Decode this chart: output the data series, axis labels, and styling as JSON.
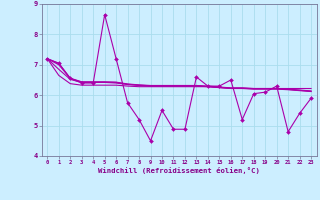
{
  "xlabel": "Windchill (Refroidissement éolien,°C)",
  "background_color": "#cceeff",
  "grid_color": "#aaddee",
  "line_color": "#aa00aa",
  "label_color": "#880088",
  "bottom_bar_color": "#9966aa",
  "xlim": [
    -0.5,
    23.5
  ],
  "ylim": [
    4,
    9
  ],
  "yticks": [
    4,
    5,
    6,
    7,
    8,
    9
  ],
  "xticks": [
    0,
    1,
    2,
    3,
    4,
    5,
    6,
    7,
    8,
    9,
    10,
    11,
    12,
    13,
    14,
    15,
    16,
    17,
    18,
    19,
    20,
    21,
    22,
    23
  ],
  "series": [
    [
      7.2,
      7.05,
      6.55,
      6.4,
      6.4,
      8.65,
      7.2,
      5.75,
      5.2,
      4.5,
      5.5,
      4.88,
      4.88,
      6.6,
      6.3,
      6.3,
      6.5,
      5.2,
      6.05,
      6.1,
      6.3,
      4.8,
      5.4,
      5.9
    ],
    [
      7.2,
      6.65,
      6.38,
      6.33,
      6.33,
      6.33,
      6.33,
      6.3,
      6.28,
      6.28,
      6.28,
      6.28,
      6.28,
      6.28,
      6.28,
      6.25,
      6.23,
      6.23,
      6.22,
      6.22,
      6.22,
      6.22,
      6.22,
      6.22
    ],
    [
      7.2,
      6.85,
      6.52,
      6.42,
      6.42,
      6.42,
      6.4,
      6.35,
      6.32,
      6.3,
      6.3,
      6.3,
      6.3,
      6.3,
      6.28,
      6.25,
      6.22,
      6.22,
      6.2,
      6.2,
      6.2,
      6.18,
      6.15,
      6.12
    ],
    [
      7.2,
      7.0,
      6.55,
      6.43,
      6.43,
      6.43,
      6.42,
      6.36,
      6.33,
      6.31,
      6.31,
      6.31,
      6.31,
      6.31,
      6.29,
      6.26,
      6.23,
      6.23,
      6.21,
      6.21,
      6.21,
      6.19,
      6.16,
      6.13
    ],
    [
      7.2,
      7.05,
      6.56,
      6.44,
      6.44,
      6.44,
      6.43,
      6.37,
      6.34,
      6.32,
      6.32,
      6.32,
      6.32,
      6.32,
      6.3,
      6.27,
      6.24,
      6.24,
      6.22,
      6.22,
      6.22,
      6.2,
      6.17,
      6.14
    ]
  ]
}
